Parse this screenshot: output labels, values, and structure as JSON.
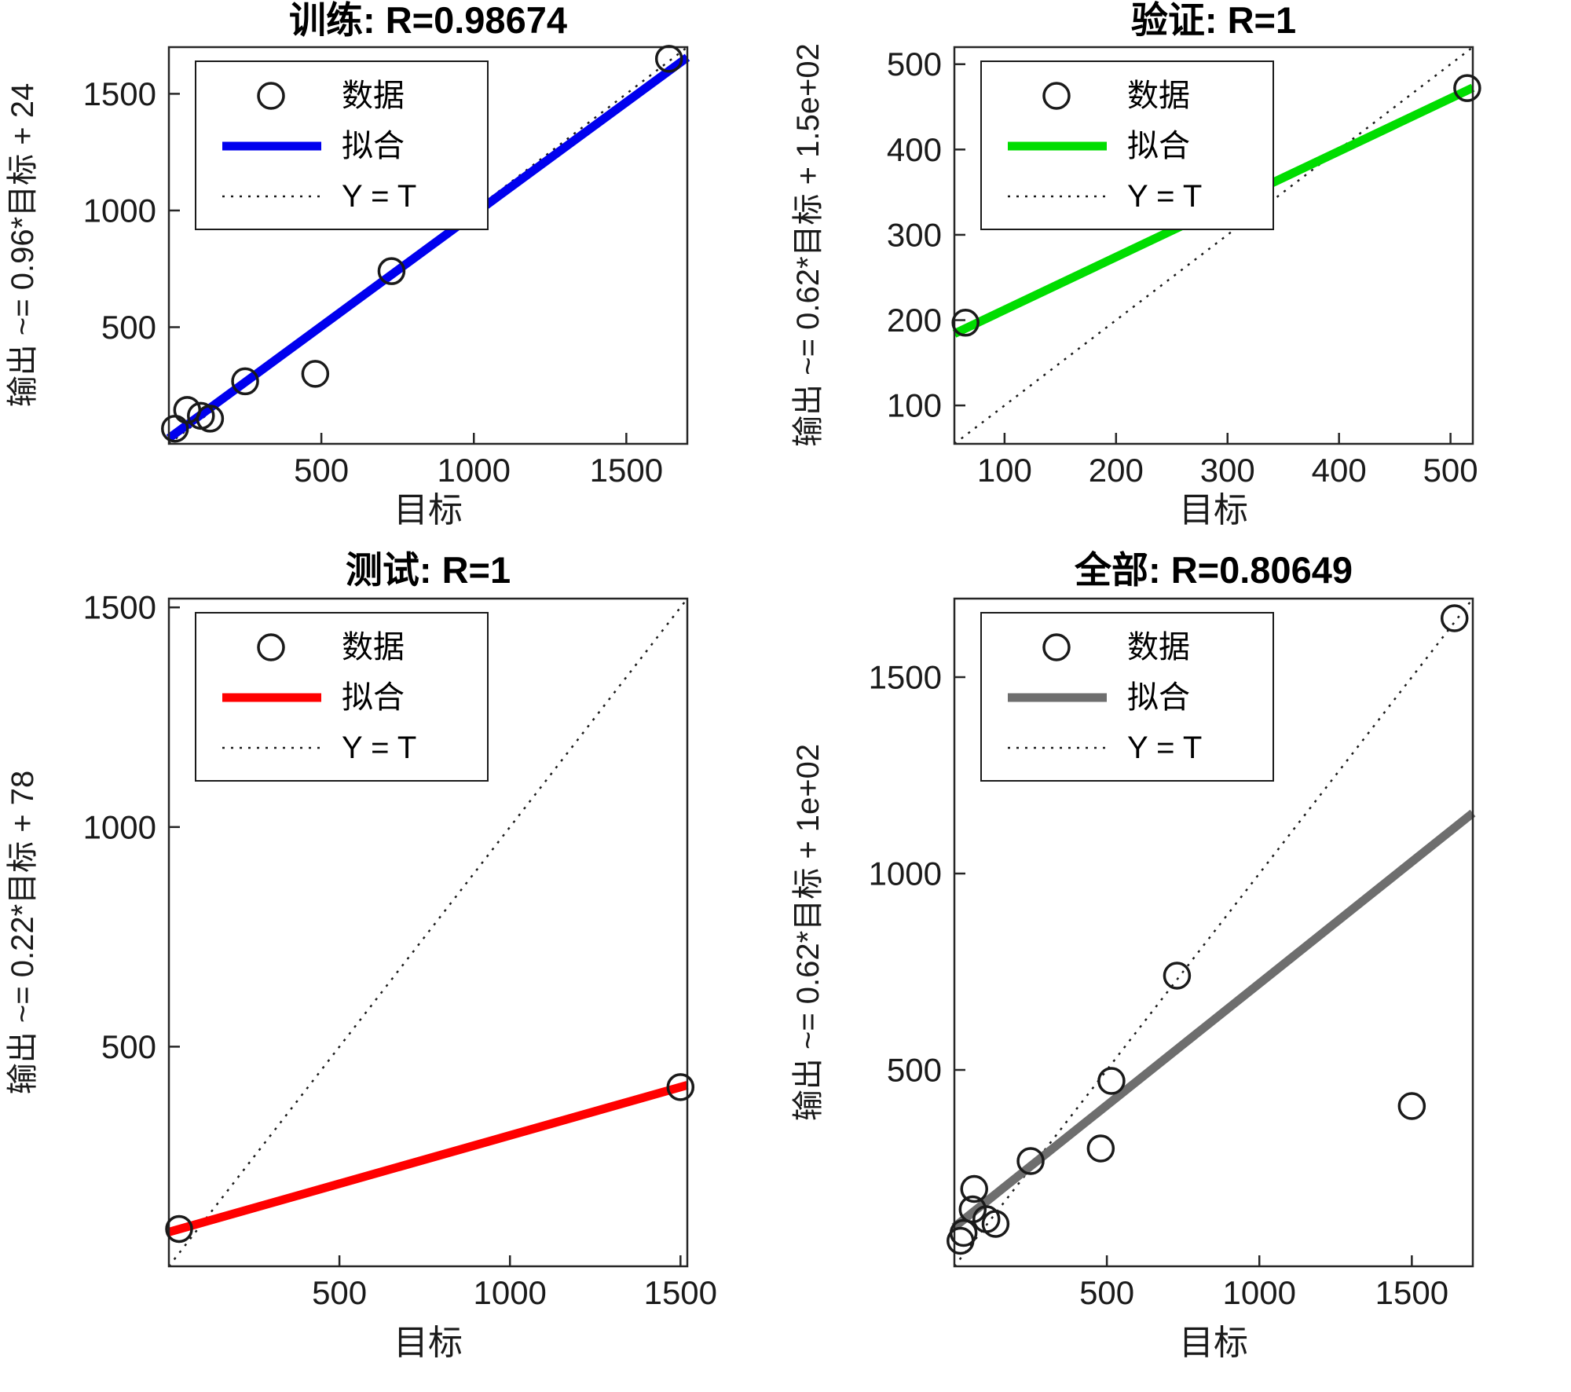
{
  "figure": {
    "background": "#ffffff",
    "marker_color": "#1a1a1a",
    "identity_color": "#1a1a1a"
  },
  "chart_data": [
    {
      "type": "scatter",
      "name": "training",
      "title": "训练: R=0.98674",
      "xlabel": "目标",
      "ylabel": "输出 ~= 0.96*目标 + 24",
      "xlim": [
        0,
        1700
      ],
      "ylim": [
        0,
        1700
      ],
      "xticks": [
        500,
        1000,
        1500
      ],
      "yticks": [
        500,
        1000,
        1500
      ],
      "fit": {
        "slope": 0.96,
        "intercept": 24,
        "color": "#0000ee"
      },
      "identity": {
        "label": "Y = T",
        "style": "dotted"
      },
      "legend": {
        "position": "upper-left",
        "entries": [
          "数据",
          "拟合",
          "Y = T"
        ]
      },
      "points": [
        [
          20,
          65
        ],
        [
          60,
          145
        ],
        [
          105,
          120
        ],
        [
          135,
          108
        ],
        [
          250,
          268
        ],
        [
          480,
          300
        ],
        [
          730,
          740
        ],
        [
          1640,
          1650
        ]
      ]
    },
    {
      "type": "scatter",
      "name": "validation",
      "title": "验证: R=1",
      "xlabel": "目标",
      "ylabel": "输出 ~= 0.62*目标 + 1.5e+02",
      "xlim": [
        55,
        520
      ],
      "ylim": [
        55,
        520
      ],
      "xticks": [
        100,
        200,
        300,
        400,
        500
      ],
      "yticks": [
        100,
        200,
        300,
        400,
        500
      ],
      "fit": {
        "slope": 0.62,
        "intercept": 150,
        "color": "#00dd00"
      },
      "identity": {
        "label": "Y = T",
        "style": "dotted"
      },
      "legend": {
        "position": "upper-left",
        "entries": [
          "数据",
          "拟合",
          "Y = T"
        ]
      },
      "points": [
        [
          65,
          197
        ],
        [
          515,
          472
        ]
      ]
    },
    {
      "type": "scatter",
      "name": "test",
      "title": "测试: R=1",
      "xlabel": "目标",
      "ylabel": "输出 ~= 0.22*目标 + 78",
      "xlim": [
        0,
        1520
      ],
      "ylim": [
        0,
        1520
      ],
      "xticks": [
        500,
        1000,
        1500
      ],
      "yticks": [
        500,
        1000,
        1500
      ],
      "fit": {
        "slope": 0.22,
        "intercept": 78,
        "color": "#ff0000"
      },
      "identity": {
        "label": "Y = T",
        "style": "dotted"
      },
      "legend": {
        "position": "upper-left",
        "entries": [
          "数据",
          "拟合",
          "Y = T"
        ]
      },
      "points": [
        [
          30,
          85
        ],
        [
          1500,
          408
        ]
      ]
    },
    {
      "type": "scatter",
      "name": "all",
      "title": "全部: R=0.80649",
      "xlabel": "目标",
      "ylabel": "输出 ~= 0.62*目标 + 1e+02",
      "xlim": [
        0,
        1700
      ],
      "ylim": [
        0,
        1700
      ],
      "xticks": [
        500,
        1000,
        1500
      ],
      "yticks": [
        500,
        1000,
        1500
      ],
      "fit": {
        "slope": 0.62,
        "intercept": 100,
        "color": "#6e6e6e"
      },
      "identity": {
        "label": "Y = T",
        "style": "dotted"
      },
      "legend": {
        "position": "upper-left",
        "entries": [
          "数据",
          "拟合",
          "Y = T"
        ]
      },
      "points": [
        [
          20,
          65
        ],
        [
          30,
          85
        ],
        [
          60,
          145
        ],
        [
          65,
          197
        ],
        [
          105,
          120
        ],
        [
          135,
          108
        ],
        [
          250,
          268
        ],
        [
          480,
          300
        ],
        [
          515,
          472
        ],
        [
          730,
          740
        ],
        [
          1500,
          408
        ],
        [
          1640,
          1650
        ]
      ]
    }
  ]
}
